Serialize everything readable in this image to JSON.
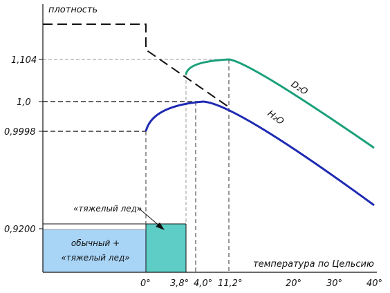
{
  "chart_data": {
    "type": "line",
    "y_axis_label": "плотность",
    "x_axis_label": "температура по Цельсию",
    "y_ticks": [
      "1,104",
      "1,0",
      "0,9998",
      "0,9200"
    ],
    "x_ticks": [
      "0°",
      "3,8°",
      "4,0°",
      "11,2°",
      "20°",
      "30°",
      "40°"
    ],
    "x_range": [
      -13,
      40
    ],
    "series": [
      {
        "name": "D₂O",
        "color": "#1aa07a",
        "range_c": [
          3.8,
          40
        ],
        "peak_c": 11.2,
        "peak_density": "1,104"
      },
      {
        "name": "H₂O",
        "color": "#1f2ab4",
        "range_c": [
          0,
          40
        ],
        "peak_c": 4.0,
        "peak_density": "1,0",
        "start_density": "0,9998"
      }
    ],
    "heavy_ice_line": {
      "style": "dashed",
      "color": "#111111"
    },
    "regions": [
      {
        "label_lines": [
          "обычный +",
          "«тяжелый лед»"
        ],
        "color": "#a8d4f6",
        "range_c": [
          -13,
          0
        ]
      },
      {
        "label": "«тяжелый лед»",
        "color": "#5ecdc6",
        "range_c": [
          0,
          3.8
        ]
      }
    ]
  }
}
